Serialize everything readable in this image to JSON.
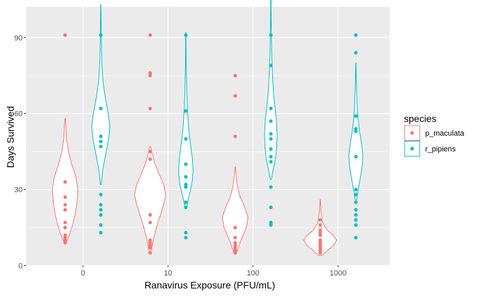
{
  "chart_data": {
    "type": "violin",
    "title": "",
    "xlabel": "Ranavirus Exposure (PFU/mL)",
    "ylabel": "Days Survived",
    "categories": [
      "0",
      "10",
      "100",
      "1000"
    ],
    "ylim": [
      0,
      102
    ],
    "yticks": [
      0,
      30,
      60,
      90
    ],
    "grid": true,
    "legend": {
      "title": "species",
      "position": "right"
    },
    "series": [
      {
        "name": "p_maculata",
        "color": "#F8766D",
        "groups": [
          {
            "category": "0",
            "points": [
              91,
              33,
              27,
              24,
              22,
              17,
              15,
              12,
              11,
              10,
              9
            ],
            "violin": {
              "min": 9,
              "max": 58,
              "profile": [
                [
                  9,
                  0.05
                ],
                [
                  12,
                  0.25
                ],
                [
                  16,
                  0.45
                ],
                [
                  20,
                  0.6
                ],
                [
                  25,
                  0.72
                ],
                [
                  30,
                  0.78
                ],
                [
                  35,
                  0.65
                ],
                [
                  40,
                  0.4
                ],
                [
                  45,
                  0.2
                ],
                [
                  50,
                  0.08
                ],
                [
                  58,
                  0.02
                ]
              ]
            }
          },
          {
            "category": "10",
            "points": [
              91,
              76,
              75,
              62,
              45,
              42,
              20,
              17,
              10,
              9,
              8,
              7,
              5
            ],
            "violin": {
              "min": 5,
              "max": 47,
              "profile": [
                [
                  5,
                  0.05
                ],
                [
                  10,
                  0.18
                ],
                [
                  15,
                  0.38
                ],
                [
                  20,
                  0.62
                ],
                [
                  25,
                  0.86
                ],
                [
                  28,
                  0.95
                ],
                [
                  32,
                  0.82
                ],
                [
                  36,
                  0.55
                ],
                [
                  40,
                  0.3
                ],
                [
                  44,
                  0.12
                ],
                [
                  47,
                  0.03
                ]
              ]
            }
          },
          {
            "category": "100",
            "points": [
              75,
              67,
              51,
              15,
              11,
              9,
              8,
              7,
              6,
              5
            ],
            "violin": {
              "min": 5,
              "max": 39,
              "profile": [
                [
                  5,
                  0.08
                ],
                [
                  10,
                  0.35
                ],
                [
                  15,
                  0.68
                ],
                [
                  19,
                  0.78
                ],
                [
                  23,
                  0.58
                ],
                [
                  27,
                  0.3
                ],
                [
                  31,
                  0.14
                ],
                [
                  35,
                  0.06
                ],
                [
                  39,
                  0.01
                ]
              ]
            }
          },
          {
            "category": "1000",
            "points": [
              18,
              16,
              14,
              13,
              12,
              10,
              9,
              8,
              7,
              6,
              5
            ],
            "violin": {
              "min": 4,
              "max": 26,
              "profile": [
                [
                  4,
                  0.12
                ],
                [
                  6,
                  0.45
                ],
                [
                  8,
                  0.82
                ],
                [
                  10,
                  1.0
                ],
                [
                  12,
                  0.78
                ],
                [
                  14,
                  0.42
                ],
                [
                  17,
                  0.14
                ],
                [
                  21,
                  0.05
                ],
                [
                  26,
                  0.01
                ]
              ]
            }
          }
        ]
      },
      {
        "name": "r_pipiens",
        "color": "#00BFC4",
        "groups": [
          {
            "category": "0",
            "points": [
              91,
              62,
              51,
              49,
              47,
              28,
              24,
              22,
              20,
              16,
              13
            ],
            "violin": {
              "min": 32,
              "max": 103,
              "profile": [
                [
                  32,
                  0.02
                ],
                [
                  38,
                  0.12
                ],
                [
                  44,
                  0.3
                ],
                [
                  50,
                  0.48
                ],
                [
                  55,
                  0.55
                ],
                [
                  60,
                  0.45
                ],
                [
                  66,
                  0.28
                ],
                [
                  72,
                  0.14
                ],
                [
                  80,
                  0.06
                ],
                [
                  90,
                  0.03
                ],
                [
                  103,
                  0.01
                ]
              ]
            }
          },
          {
            "category": "10",
            "points": [
              91,
              61,
              50,
              40,
              35,
              32,
              31,
              25,
              23,
              13,
              11
            ],
            "violin": {
              "min": 23,
              "max": 92,
              "profile": [
                [
                  23,
                  0.04
                ],
                [
                  27,
                  0.18
                ],
                [
                  32,
                  0.36
                ],
                [
                  37,
                  0.44
                ],
                [
                  42,
                  0.4
                ],
                [
                  47,
                  0.3
                ],
                [
                  52,
                  0.2
                ],
                [
                  57,
                  0.14
                ],
                [
                  62,
                  0.09
                ],
                [
                  70,
                  0.05
                ],
                [
                  80,
                  0.02
                ],
                [
                  92,
                  0.01
                ]
              ]
            }
          },
          {
            "category": "100",
            "points": [
              91,
              79,
              62,
              57,
              52,
              50,
              46,
              43,
              41,
              31,
              23,
              17,
              16
            ],
            "violin": {
              "min": 34,
              "max": 108,
              "profile": [
                [
                  34,
                  0.03
                ],
                [
                  38,
                  0.14
                ],
                [
                  42,
                  0.28
                ],
                [
                  47,
                  0.36
                ],
                [
                  52,
                  0.38
                ],
                [
                  57,
                  0.34
                ],
                [
                  62,
                  0.26
                ],
                [
                  68,
                  0.16
                ],
                [
                  75,
                  0.1
                ],
                [
                  83,
                  0.05
                ],
                [
                  95,
                  0.02
                ],
                [
                  108,
                  0.01
                ]
              ]
            }
          },
          {
            "category": "1000",
            "points": [
              91,
              84,
              59,
              54,
              53,
              43,
              30,
              28,
              25,
              22,
              20,
              18,
              16,
              11
            ],
            "violin": {
              "min": 26,
              "max": 80,
              "profile": [
                [
                  26,
                  0.04
                ],
                [
                  30,
                  0.14
                ],
                [
                  35,
                  0.28
                ],
                [
                  40,
                  0.4
                ],
                [
                  44,
                  0.42
                ],
                [
                  48,
                  0.34
                ],
                [
                  53,
                  0.22
                ],
                [
                  58,
                  0.13
                ],
                [
                  64,
                  0.07
                ],
                [
                  72,
                  0.03
                ],
                [
                  80,
                  0.01
                ]
              ]
            }
          }
        ]
      }
    ]
  }
}
